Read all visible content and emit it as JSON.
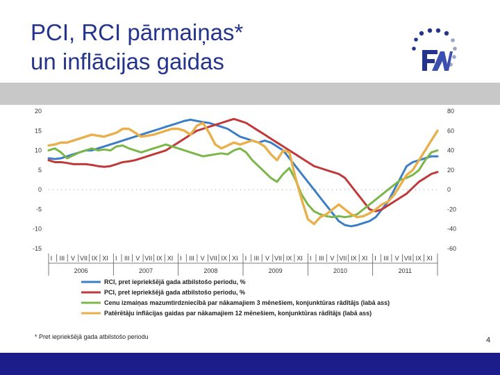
{
  "slide": {
    "title_line1": "PCI, RCI pārmaiņas*",
    "title_line2": "un inflācijas gaidas",
    "footnote": "* Pret iepriekšējā gada atbilstošo periodu",
    "page_number": "4",
    "colors": {
      "title": "#24348c",
      "band": "#c8c8c8",
      "bottom_bar": "#1c1d8a"
    }
  },
  "logo": {
    "letters": "FM",
    "icon": "fm-stars-logo"
  },
  "chart_data": {
    "type": "line",
    "left_axis": {
      "ylim": [
        -15,
        20
      ],
      "ticks": [
        20,
        15,
        10,
        5,
        0,
        -5,
        -10,
        -15
      ]
    },
    "right_axis": {
      "ylim": [
        -60,
        80
      ],
      "ticks": [
        80,
        60,
        40,
        20,
        0,
        -20,
        -40,
        -60
      ]
    },
    "months": [
      "I",
      "III",
      "V",
      "VII",
      "IX",
      "XI"
    ],
    "years": [
      "2006",
      "2007",
      "2008",
      "2009",
      "2010",
      "2011"
    ],
    "x_range": [
      0,
      63
    ],
    "grid": false,
    "legend_position": "bottom",
    "series": [
      {
        "name": "RCI, pret iepriekšējā gada atbilstošo periodu, %",
        "axis": "left",
        "color": "#3c7ec6",
        "values": [
          8,
          7.8,
          8,
          8.5,
          9,
          9.5,
          10,
          10,
          10.5,
          11,
          11.5,
          12,
          12.5,
          13,
          13.5,
          14,
          14.5,
          15,
          15.5,
          16,
          16.5,
          17,
          17.5,
          17.8,
          17.5,
          17.2,
          17,
          16.5,
          16,
          15.5,
          14.5,
          13.5,
          13,
          12.5,
          12,
          12.5,
          12,
          11,
          10,
          8,
          6,
          4,
          2,
          0,
          -2,
          -4,
          -6,
          -8,
          -9,
          -9.3,
          -9,
          -8.5,
          -8,
          -7,
          -5,
          -3,
          0,
          3,
          6,
          7,
          7.5,
          8,
          8.5,
          8.5
        ]
      },
      {
        "name": "PCI, pret iepriekšējā gada atbilstošo periodu, %",
        "axis": "left",
        "color": "#c0393a",
        "values": [
          7.5,
          7,
          7,
          6.8,
          6.5,
          6.5,
          6.5,
          6.3,
          6,
          5.8,
          6,
          6.5,
          7,
          7.2,
          7.5,
          8,
          8.5,
          9,
          9.5,
          10,
          11,
          12,
          13,
          14,
          15,
          15.5,
          16,
          16.5,
          17,
          17.5,
          18,
          17.5,
          17,
          16,
          15,
          14,
          13,
          12,
          11,
          10,
          9,
          8,
          7,
          6,
          5.5,
          5,
          4.5,
          4,
          3,
          1,
          -1,
          -3,
          -5,
          -5.5,
          -5,
          -4,
          -3,
          -2,
          -1,
          0.5,
          2,
          3,
          4,
          4.5
        ]
      },
      {
        "name": "Cenu izmaiņas mazumtirdzniecībā par nākamajiem 3 mēnešiem, konjunktūras rādītājs (labā ass)",
        "axis": "right",
        "color": "#7ab648",
        "values": [
          40,
          42,
          38,
          32,
          35,
          38,
          40,
          42,
          40,
          41,
          40,
          44,
          45,
          42,
          40,
          38,
          40,
          42,
          44,
          46,
          44,
          42,
          40,
          38,
          36,
          34,
          35,
          36,
          37,
          36,
          40,
          42,
          38,
          30,
          24,
          18,
          12,
          8,
          16,
          22,
          10,
          -5,
          -15,
          -22,
          -25,
          -27,
          -28,
          -27,
          -28,
          -27,
          -25,
          -20,
          -15,
          -10,
          -5,
          0,
          5,
          10,
          12,
          15,
          20,
          30,
          38,
          40
        ]
      },
      {
        "name": "Patērētāju inflācijas gaidas par nākamajiem 12 mēnešiem, konjunktūras rādītājs (labā ass)",
        "axis": "right",
        "color": "#e8b04a",
        "values": [
          45,
          46,
          48,
          48,
          50,
          52,
          54,
          56,
          55,
          54,
          56,
          58,
          62,
          62,
          58,
          54,
          55,
          56,
          58,
          60,
          62,
          62,
          60,
          56,
          65,
          68,
          58,
          46,
          42,
          45,
          48,
          46,
          48,
          50,
          48,
          44,
          36,
          30,
          40,
          38,
          12,
          -10,
          -30,
          -35,
          -28,
          -25,
          -20,
          -15,
          -20,
          -25,
          -28,
          -27,
          -24,
          -20,
          -15,
          -12,
          -5,
          5,
          15,
          20,
          30,
          40,
          50,
          60
        ]
      }
    ]
  }
}
